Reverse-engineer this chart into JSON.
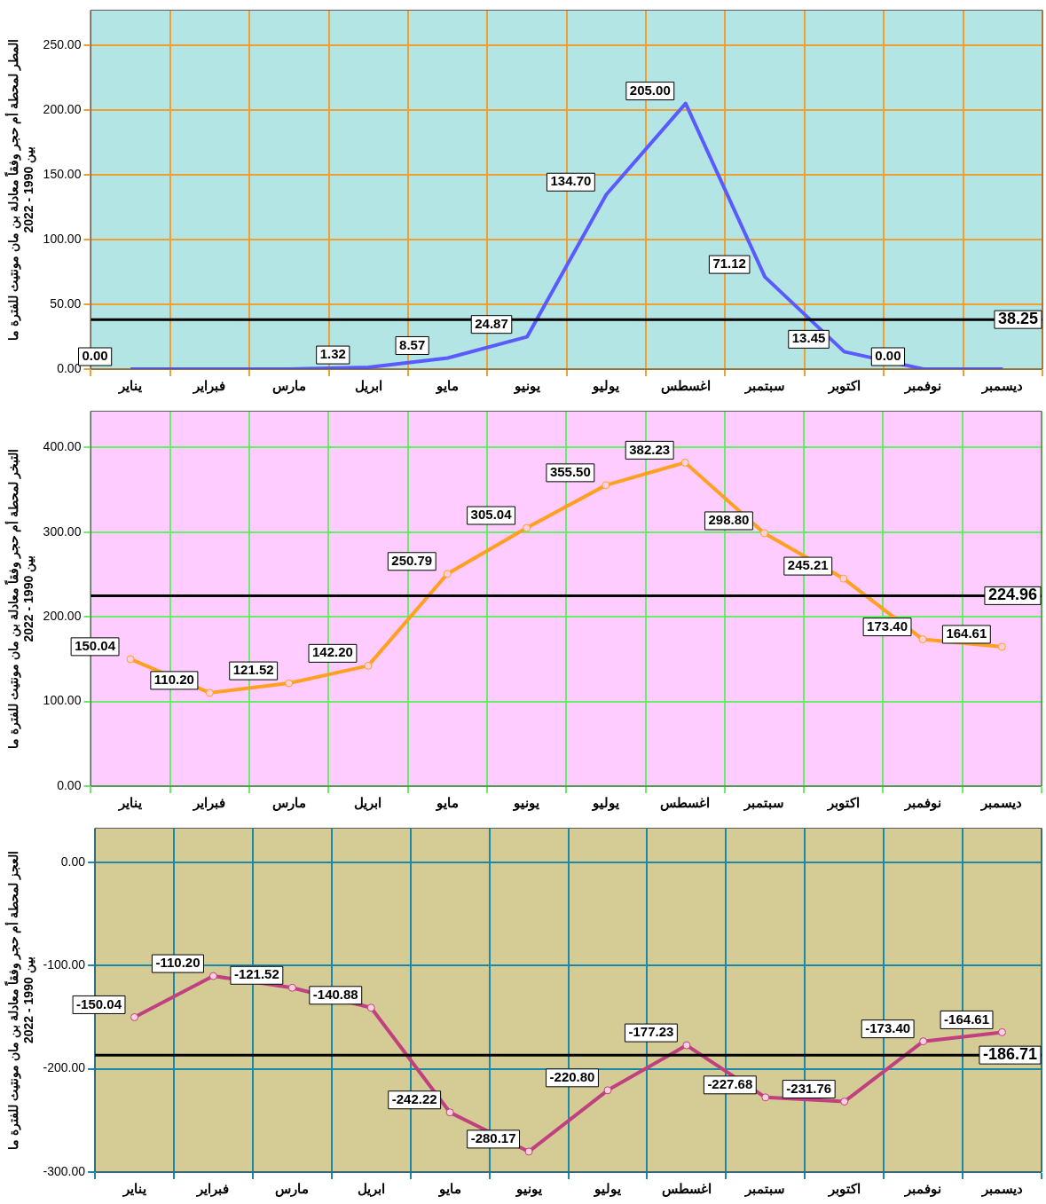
{
  "chart_data": [
    {
      "type": "line",
      "ylabel": "المطر لمحطة أم حجر وفقاً معادلة بن مان مونتيث للفترة ما بين 1990 - 2022",
      "categories": [
        "يناير",
        "فبراير",
        "مارس",
        "ابريل",
        "مايو",
        "يونيو",
        "يوليو",
        "اغسطس",
        "سبتمبر",
        "اكتوبر",
        "نوفمبر",
        "ديسمبر"
      ],
      "series": [
        {
          "color": "#5a5aff",
          "values": [
            0,
            0,
            0,
            1.32,
            8.57,
            24.87,
            134.7,
            205,
            71.12,
            13.45,
            0,
            0
          ],
          "value_labels": [
            "0.00",
            null,
            null,
            "1.32",
            "8.57",
            "24.87",
            "134.70",
            "205.00",
            "71.12",
            "13.45",
            "0.00",
            null
          ]
        }
      ],
      "ylim": [
        0,
        277
      ],
      "yticks": [
        {
          "value": 0,
          "label": "0.00"
        },
        {
          "value": 50,
          "label": "50.00"
        },
        {
          "value": 100,
          "label": "100.00"
        },
        {
          "value": 150,
          "label": "150.00"
        },
        {
          "value": 200,
          "label": "200.00"
        },
        {
          "value": 250,
          "label": "250.00"
        }
      ],
      "ref_lines": [
        {
          "axis": "y",
          "value": 38.25,
          "label": "38.25",
          "color": "#000000"
        }
      ],
      "grid": true,
      "legend": false,
      "marker": "none"
    },
    {
      "type": "line",
      "ylabel": "التبخر لمحطة أم حجر وفقاً معادلة بن مان مونتيث للفترة ما بين 1990 - 2022",
      "categories": [
        "يناير",
        "فبراير",
        "مارس",
        "ابريل",
        "مايو",
        "يونيو",
        "يوليو",
        "اغسطس",
        "سبتمبر",
        "اكتوبر",
        "نوفمبر",
        "ديسمبر"
      ],
      "series": [
        {
          "color": "#ffa020",
          "values": [
            150.04,
            110.2,
            121.52,
            142.2,
            250.79,
            305.04,
            355.5,
            382.23,
            298.8,
            245.21,
            173.4,
            164.61
          ],
          "value_labels": [
            "150.04",
            "110.20",
            "121.52",
            "142.20",
            "250.79",
            "305.04",
            "355.50",
            "382.23",
            "298.80",
            "245.21",
            "173.40",
            "164.61"
          ]
        }
      ],
      "ylim": [
        0,
        443
      ],
      "yticks": [
        {
          "value": 0,
          "label": "0.00"
        },
        {
          "value": 100,
          "label": "100.00"
        },
        {
          "value": 200,
          "label": "200.00"
        },
        {
          "value": 300,
          "label": "300.00"
        },
        {
          "value": 400,
          "label": "400.00"
        }
      ],
      "ref_lines": [
        {
          "axis": "y",
          "value": 224.96,
          "label": "224.96",
          "color": "#000000"
        }
      ],
      "grid": true,
      "legend": false,
      "marker": "circle"
    },
    {
      "type": "line",
      "ylabel": "العجز لمحطة أم حجر وفقاً معادلة بن مان مونتيث للفترة ما بين 1990 - 2022",
      "categories": [
        "يناير",
        "فبراير",
        "مارس",
        "ابريل",
        "مايو",
        "يونيو",
        "يوليو",
        "اغسطس",
        "سبتمبر",
        "اكتوبر",
        "نوفمبر",
        "ديسمبر"
      ],
      "series": [
        {
          "color": "#c04080",
          "values": [
            -150.04,
            -110.2,
            -121.52,
            -140.88,
            -242.22,
            -280.17,
            -220.8,
            -177.23,
            -227.68,
            -231.76,
            -173.4,
            -164.61
          ],
          "value_labels": [
            "-150.04",
            "-110.20",
            "-121.52",
            "-140.88",
            "-242.22",
            "-280.17",
            "-220.80",
            "-177.23",
            "-227.68",
            "-231.76",
            "-173.40",
            "-164.61"
          ]
        }
      ],
      "ylim": [
        -300,
        33
      ],
      "yticks": [
        {
          "value": 0,
          "label": "0.00"
        },
        {
          "value": -100,
          "label": "-100.00"
        },
        {
          "value": -200,
          "label": "-200.00"
        },
        {
          "value": -300,
          "label": "-300.00"
        }
      ],
      "ref_lines": [
        {
          "axis": "y",
          "value": -186.71,
          "label": "-186.71",
          "color": "#000000"
        }
      ],
      "grid": true,
      "legend": false,
      "marker": "circle"
    }
  ]
}
